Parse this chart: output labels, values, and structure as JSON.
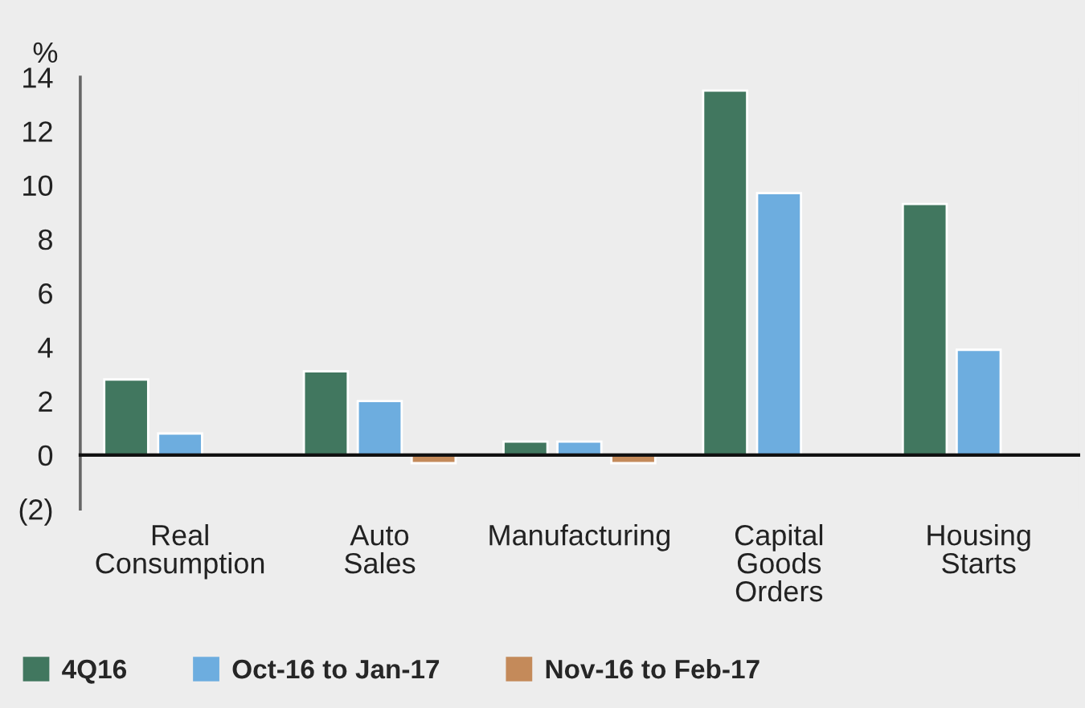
{
  "chart_data": {
    "type": "bar",
    "ylabel": "%",
    "categories": [
      "Real\nConsumption",
      "Auto\nSales",
      "Manufacturing",
      "Capital\nGoods\nOrders",
      "Housing\nStarts"
    ],
    "series": [
      {
        "name": "4Q16",
        "color": "#41775f",
        "values": [
          2.8,
          3.1,
          0.5,
          13.5,
          9.3
        ]
      },
      {
        "name": "Oct-16 to Jan-17",
        "color": "#6daddf",
        "values": [
          0.8,
          2.0,
          0.5,
          9.7,
          3.9
        ]
      },
      {
        "name": "Nov-16 to Feb-17",
        "color": "#c48a5a",
        "values": [
          null,
          -0.3,
          -0.3,
          null,
          null
        ]
      }
    ],
    "ylim": [
      -2,
      14
    ],
    "yticks": [
      {
        "value": -2,
        "label": "(2)"
      },
      0,
      2,
      4,
      6,
      8,
      10,
      12,
      14
    ],
    "grid": false,
    "legend": "bottom"
  }
}
